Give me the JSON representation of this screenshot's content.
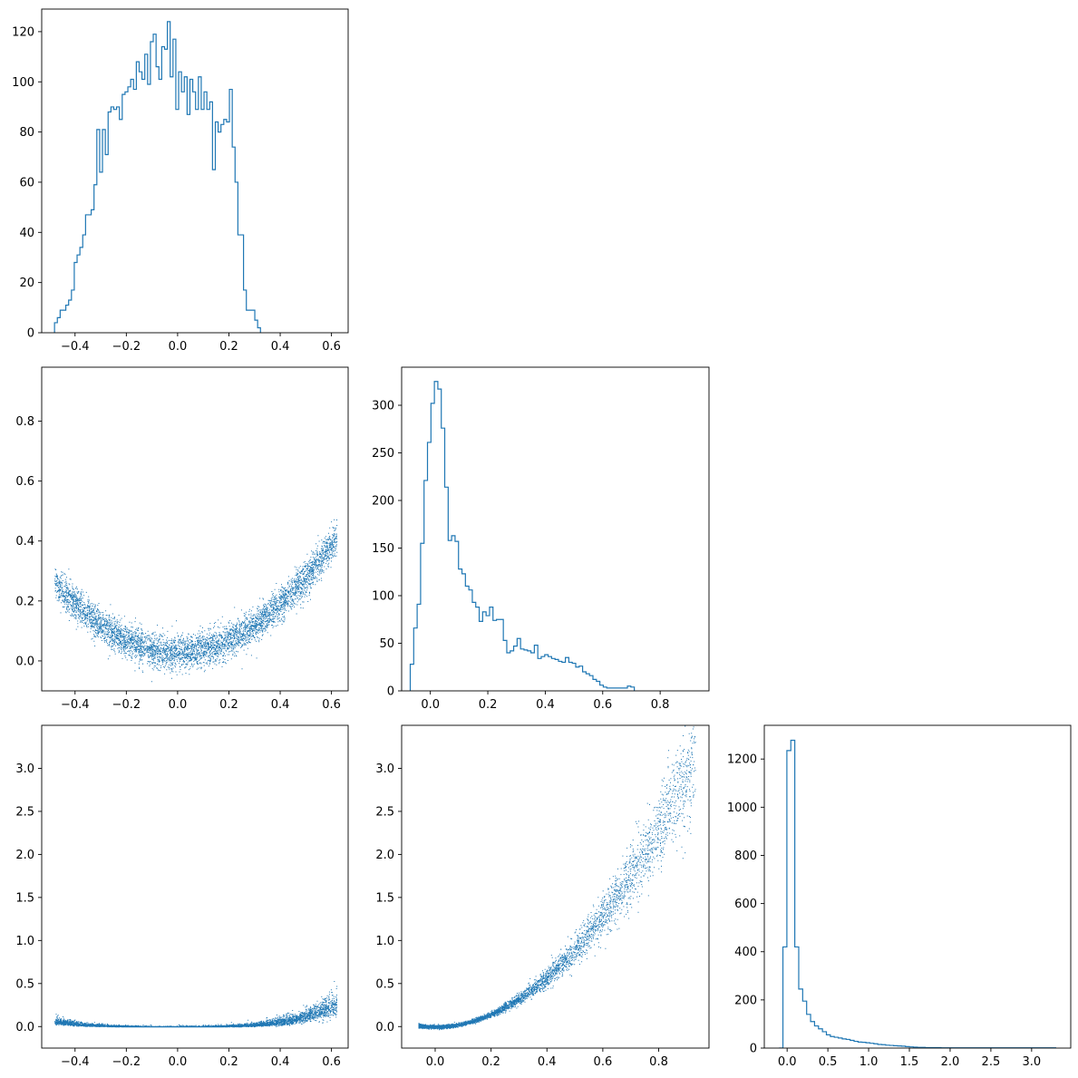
{
  "chart_data": [
    {
      "id": "hist_x",
      "type": "histogram",
      "title": "",
      "xlabel": "",
      "ylabel": "",
      "xlim": [
        -0.53,
        0.665
      ],
      "ylim": [
        0,
        129
      ],
      "xticks": [
        -0.4,
        -0.2,
        0.0,
        0.2,
        0.4,
        0.6
      ],
      "xtick_labels": [
        "−0.4",
        "−0.2",
        "0.0",
        "0.2",
        "0.4",
        "0.6"
      ],
      "yticks": [
        0,
        20,
        40,
        60,
        80,
        100,
        120
      ],
      "ytick_labels": [
        "0",
        "20",
        "40",
        "60",
        "80",
        "100",
        "120"
      ],
      "bin_start": -0.48,
      "bin_width": 0.011,
      "counts": [
        4,
        6,
        9,
        9,
        11,
        13,
        17,
        28,
        31,
        34,
        39,
        47,
        47,
        49,
        59,
        81,
        64,
        81,
        71,
        88,
        90,
        89,
        90,
        85,
        95,
        96,
        98,
        101,
        97,
        108,
        104,
        101,
        111,
        99,
        116,
        119,
        106,
        101,
        114,
        113,
        124,
        102,
        117,
        89,
        104,
        96,
        102,
        87,
        101,
        96,
        89,
        102,
        89,
        96,
        89,
        92,
        65,
        84,
        80,
        83,
        85,
        84,
        97,
        74,
        60,
        39,
        39,
        17,
        9,
        9,
        9,
        5,
        2
      ],
      "color": "#1f77b4"
    },
    {
      "id": "scatter_x_xsq",
      "type": "scatter",
      "title": "",
      "xlabel": "",
      "ylabel": "",
      "xlim": [
        -0.53,
        0.665
      ],
      "ylim": [
        -0.1,
        0.98
      ],
      "xticks": [
        -0.4,
        -0.2,
        0.0,
        0.2,
        0.4,
        0.6
      ],
      "xtick_labels": [
        "−0.4",
        "−0.2",
        "0.0",
        "0.2",
        "0.4",
        "0.6"
      ],
      "yticks": [
        0.0,
        0.2,
        0.4,
        0.6,
        0.8
      ],
      "ytick_labels": [
        "0.0",
        "0.2",
        "0.4",
        "0.6",
        "0.8"
      ],
      "relation": "y ≈ x² + 0.03 with spread ±0.05",
      "x_range": [
        -0.48,
        0.62
      ],
      "n_points": 5000,
      "color": "#1f77b4"
    },
    {
      "id": "hist_xsq",
      "type": "histogram",
      "title": "",
      "xlabel": "",
      "ylabel": "",
      "xlim": [
        -0.1,
        0.97
      ],
      "ylim": [
        0,
        340
      ],
      "xticks": [
        0.0,
        0.2,
        0.4,
        0.6,
        0.8
      ],
      "xtick_labels": [
        "0.0",
        "0.2",
        "0.4",
        "0.6",
        "0.8"
      ],
      "yticks": [
        0,
        50,
        100,
        150,
        200,
        250,
        300
      ],
      "ytick_labels": [
        "0",
        "50",
        "100",
        "150",
        "200",
        "250",
        "300"
      ],
      "bin_start": -0.07,
      "bin_width": 0.012,
      "counts": [
        28,
        66,
        91,
        155,
        221,
        261,
        302,
        325,
        317,
        276,
        214,
        158,
        163,
        157,
        128,
        123,
        110,
        106,
        93,
        88,
        73,
        83,
        79,
        88,
        74,
        75,
        75,
        53,
        40,
        42,
        47,
        55,
        44,
        43,
        42,
        40,
        48,
        34,
        36,
        38,
        36,
        34,
        33,
        31,
        30,
        35,
        30,
        29,
        25,
        26,
        20,
        18,
        16,
        12,
        10,
        6,
        4,
        3,
        3,
        3,
        3,
        3,
        3,
        5,
        4
      ],
      "color": "#1f77b4"
    },
    {
      "id": "scatter_x_x4",
      "type": "scatter",
      "title": "",
      "xlabel": "",
      "ylabel": "",
      "xlim": [
        -0.53,
        0.665
      ],
      "ylim": [
        -0.25,
        3.5
      ],
      "xticks": [
        -0.4,
        -0.2,
        0.0,
        0.2,
        0.4,
        0.6
      ],
      "xtick_labels": [
        "−0.4",
        "−0.2",
        "0.0",
        "0.2",
        "0.4",
        "0.6"
      ],
      "yticks": [
        0.0,
        0.5,
        1.0,
        1.5,
        2.0,
        2.5,
        3.0
      ],
      "ytick_labels": [
        "0.0",
        "0.5",
        "1.0",
        "1.5",
        "2.0",
        "2.5",
        "3.0"
      ],
      "relation": "y ≈ x⁴·(1 + noise)",
      "x_range": [
        -0.48,
        0.62
      ],
      "n_points": 5000,
      "color": "#1f77b4"
    },
    {
      "id": "scatter_xsq_x4",
      "type": "scatter",
      "title": "",
      "xlabel": "",
      "ylabel": "",
      "xlim": [
        -0.12,
        0.98
      ],
      "ylim": [
        -0.25,
        3.5
      ],
      "xticks": [
        0.0,
        0.2,
        0.4,
        0.6,
        0.8
      ],
      "xtick_labels": [
        "0.0",
        "0.2",
        "0.4",
        "0.6",
        "0.8"
      ],
      "yticks": [
        0.0,
        0.5,
        1.0,
        1.5,
        2.0,
        2.5,
        3.0
      ],
      "ytick_labels": [
        "0.0",
        "0.5",
        "1.0",
        "1.5",
        "2.0",
        "2.5",
        "3.0"
      ],
      "relation": "y ≈ x²·(3.6 + noise)",
      "x_range": [
        -0.06,
        0.93
      ],
      "n_points": 5000,
      "color": "#1f77b4"
    },
    {
      "id": "hist_x4",
      "type": "histogram",
      "title": "",
      "xlabel": "",
      "ylabel": "",
      "xlim": [
        -0.28,
        3.48
      ],
      "ylim": [
        0,
        1340
      ],
      "xticks": [
        0.0,
        0.5,
        1.0,
        1.5,
        2.0,
        2.5,
        3.0
      ],
      "xtick_labels": [
        "0.0",
        "0.5",
        "1.0",
        "1.5",
        "2.0",
        "2.5",
        "3.0"
      ],
      "yticks": [
        0,
        200,
        400,
        600,
        800,
        1000,
        1200
      ],
      "ytick_labels": [
        "0",
        "200",
        "400",
        "600",
        "800",
        "1000",
        "1200"
      ],
      "bin_start": -0.1,
      "bin_width": 0.0485,
      "counts": [
        0,
        420,
        1235,
        1278,
        420,
        245,
        195,
        140,
        110,
        92,
        80,
        68,
        55,
        48,
        45,
        42,
        38,
        36,
        32,
        28,
        25,
        24,
        22,
        20,
        18,
        15,
        14,
        12,
        11,
        10,
        9,
        8,
        6,
        5,
        4,
        3,
        3,
        2,
        2,
        2,
        2,
        1,
        1,
        1,
        1,
        1,
        1,
        1,
        1,
        1,
        1,
        1,
        1,
        1,
        1,
        1,
        1,
        1,
        1,
        1,
        1,
        1,
        1,
        1,
        1,
        1,
        1,
        1,
        1,
        1
      ],
      "color": "#1f77b4"
    }
  ]
}
